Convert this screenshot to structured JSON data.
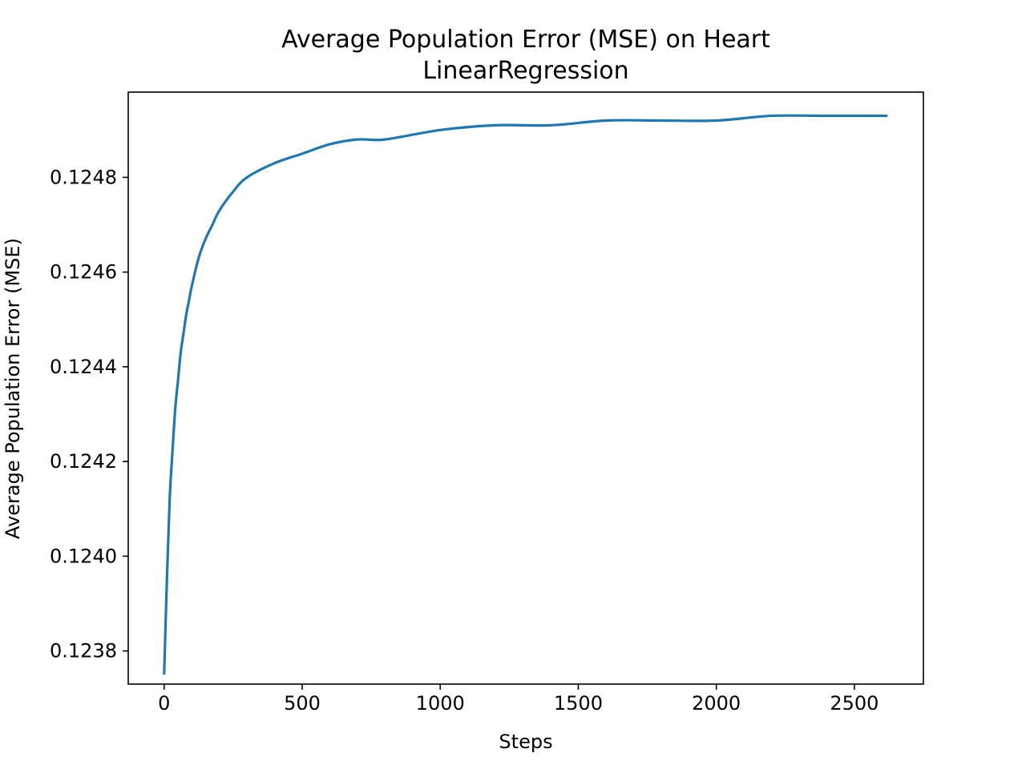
{
  "chart_data": {
    "type": "line",
    "title": "Average Population Error (MSE) on Heart",
    "subtitle": "LinearRegression",
    "xlabel": "Steps",
    "ylabel": "Average Population Error (MSE)",
    "xlim": [
      -130,
      2750
    ],
    "ylim": [
      0.12373,
      0.12498
    ],
    "xticks": [
      0,
      500,
      1000,
      1500,
      2000,
      2500
    ],
    "xtick_labels": [
      "0",
      "500",
      "1000",
      "1500",
      "2000",
      "2500"
    ],
    "yticks": [
      0.1238,
      0.124,
      0.1242,
      0.1244,
      0.1246,
      0.1248
    ],
    "ytick_labels": [
      "0.1238",
      "0.1240",
      "0.1242",
      "0.1244",
      "0.1246",
      "0.1248"
    ],
    "grid": false,
    "legend": "none",
    "series": [
      {
        "color": "#1f77b4",
        "x": [
          0,
          10,
          20,
          30,
          40,
          50,
          60,
          70,
          80,
          90,
          100,
          125,
          150,
          175,
          200,
          250,
          300,
          400,
          500,
          600,
          700,
          800,
          1000,
          1200,
          1400,
          1600,
          1800,
          2000,
          2200,
          2400,
          2620
        ],
        "y": [
          0.12375,
          0.12395,
          0.12412,
          0.12422,
          0.12431,
          0.12437,
          0.12443,
          0.12447,
          0.12451,
          0.12454,
          0.12457,
          0.12463,
          0.12467,
          0.1247,
          0.12473,
          0.12477,
          0.1248,
          0.12483,
          0.12485,
          0.12487,
          0.12488,
          0.12488,
          0.1249,
          0.12491,
          0.12491,
          0.12492,
          0.12492,
          0.12492,
          0.12493,
          0.12493,
          0.12493
        ]
      }
    ]
  }
}
